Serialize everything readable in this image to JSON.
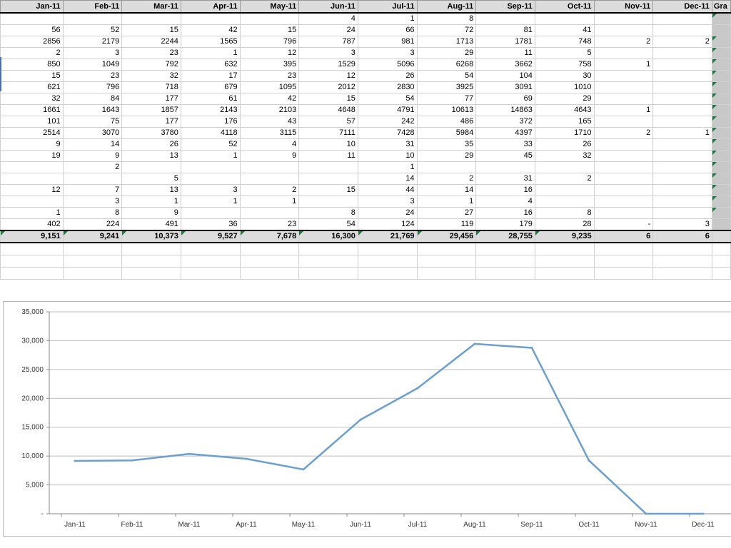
{
  "sheet": {
    "headers": [
      "Jan-11",
      "Feb-11",
      "Mar-11",
      "Apr-11",
      "May-11",
      "Jun-11",
      "Jul-11",
      "Aug-11",
      "Sep-11",
      "Oct-11",
      "Nov-11",
      "Dec-11",
      "Gra"
    ],
    "rows": [
      {
        "cells": [
          "",
          "",
          "",
          "",
          "",
          "4",
          "1",
          "8",
          "",
          "",
          "",
          ""
        ],
        "mark": true
      },
      {
        "cells": [
          "56",
          "52",
          "15",
          "42",
          "15",
          "24",
          "66",
          "72",
          "81",
          "41",
          "",
          ""
        ],
        "mark": false
      },
      {
        "cells": [
          "2856",
          "2179",
          "2244",
          "1565",
          "796",
          "787",
          "981",
          "1713",
          "1781",
          "748",
          "2",
          "2"
        ],
        "mark": true
      },
      {
        "cells": [
          "2",
          "3",
          "23",
          "1",
          "12",
          "3",
          "3",
          "29",
          "11",
          "5",
          "",
          ""
        ],
        "mark": true
      },
      {
        "cells": [
          "850",
          "1049",
          "792",
          "632",
          "395",
          "1529",
          "5096",
          "6268",
          "3662",
          "758",
          "1",
          ""
        ],
        "mark": true
      },
      {
        "cells": [
          "15",
          "23",
          "32",
          "17",
          "23",
          "12",
          "26",
          "54",
          "104",
          "30",
          "",
          ""
        ],
        "mark": true
      },
      {
        "cells": [
          "621",
          "796",
          "718",
          "679",
          "1095",
          "2012",
          "2830",
          "3925",
          "3091",
          "1010",
          "",
          ""
        ],
        "mark": true
      },
      {
        "cells": [
          "32",
          "84",
          "177",
          "61",
          "42",
          "15",
          "54",
          "77",
          "69",
          "29",
          "",
          ""
        ],
        "mark": true
      },
      {
        "cells": [
          "1661",
          "1643",
          "1857",
          "2143",
          "2103",
          "4648",
          "4791",
          "10613",
          "14863",
          "4643",
          "1",
          ""
        ],
        "mark": true
      },
      {
        "cells": [
          "101",
          "75",
          "177",
          "176",
          "43",
          "57",
          "242",
          "486",
          "372",
          "165",
          "",
          ""
        ],
        "mark": true
      },
      {
        "cells": [
          "2514",
          "3070",
          "3780",
          "4118",
          "3115",
          "7111",
          "7428",
          "5984",
          "4397",
          "1710",
          "2",
          "1"
        ],
        "mark": true
      },
      {
        "cells": [
          "9",
          "14",
          "26",
          "52",
          "4",
          "10",
          "31",
          "35",
          "33",
          "26",
          "",
          ""
        ],
        "mark": true
      },
      {
        "cells": [
          "19",
          "9",
          "13",
          "1",
          "9",
          "11",
          "10",
          "29",
          "45",
          "32",
          "",
          ""
        ],
        "mark": true
      },
      {
        "cells": [
          "",
          "2",
          "",
          "",
          "",
          "",
          "1",
          "",
          "",
          "",
          "",
          ""
        ],
        "mark": true
      },
      {
        "cells": [
          "",
          "",
          "5",
          "",
          "",
          "",
          "14",
          "2",
          "31",
          "2",
          "",
          ""
        ],
        "mark": true
      },
      {
        "cells": [
          "12",
          "7",
          "13",
          "3",
          "2",
          "15",
          "44",
          "14",
          "16",
          "",
          "",
          ""
        ],
        "mark": true
      },
      {
        "cells": [
          "",
          "3",
          "1",
          "1",
          "1",
          "",
          "3",
          "1",
          "4",
          "",
          "",
          ""
        ],
        "mark": true
      },
      {
        "cells": [
          "1",
          "8",
          "9",
          "",
          "",
          "8",
          "24",
          "27",
          "16",
          "8",
          "",
          ""
        ],
        "mark": true
      },
      {
        "cells": [
          "402",
          "224",
          "491",
          "36",
          "23",
          "54",
          "124",
          "119",
          "179",
          "28",
          "-",
          "3"
        ],
        "mark": false
      }
    ],
    "totals": [
      "9,151",
      "9,241",
      "10,373",
      "9,527",
      "7,678",
      "16,300",
      "21,769",
      "29,456",
      "28,755",
      "9,235",
      "6",
      "6"
    ]
  },
  "chart_data": {
    "type": "line",
    "categories": [
      "Jan-11",
      "Feb-11",
      "Mar-11",
      "Apr-11",
      "May-11",
      "Jun-11",
      "Jul-11",
      "Aug-11",
      "Sep-11",
      "Oct-11",
      "Nov-11",
      "Dec-11"
    ],
    "series": [
      {
        "values": [
          9151,
          9241,
          10373,
          9527,
          7678,
          16300,
          21769,
          29456,
          28755,
          9235,
          6,
          6
        ],
        "color": "#6a9fcf"
      }
    ],
    "yticks": [
      "-",
      "5,000",
      "10,000",
      "15,000",
      "20,000",
      "25,000",
      "30,000",
      "35,000"
    ],
    "ylim": [
      0,
      35000
    ],
    "grid": true,
    "legend": "none",
    "title": "",
    "xlabel": "",
    "ylabel": ""
  }
}
